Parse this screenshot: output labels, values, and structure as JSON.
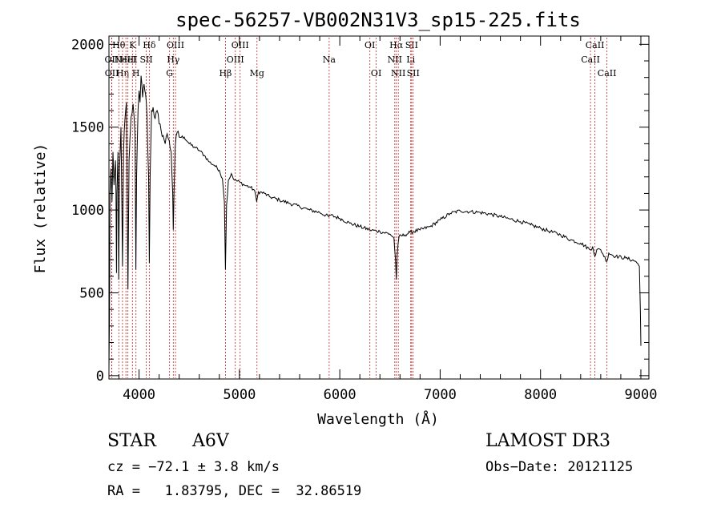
{
  "chart_data": {
    "type": "line",
    "title": "spec-56257-VB002N31V3_sp15-225.fits",
    "xlabel": "Wavelength (Å)",
    "ylabel": "Flux (relative)",
    "xlim": [
      3700,
      9080
    ],
    "ylim": [
      -20,
      2050
    ],
    "xticks": [
      4000,
      5000,
      6000,
      7000,
      8000,
      9000
    ],
    "yticks": [
      0,
      500,
      1000,
      1500,
      2000
    ],
    "series": [
      {
        "name": "spectrum",
        "color": "#000000",
        "points": [
          [
            3700,
            40
          ],
          [
            3705,
            350
          ],
          [
            3710,
            1100
          ],
          [
            3720,
            1250
          ],
          [
            3730,
            1050
          ],
          [
            3740,
            1350
          ],
          [
            3750,
            1150
          ],
          [
            3765,
            1300
          ],
          [
            3770,
            1100
          ],
          [
            3775,
            620
          ],
          [
            3780,
            1100
          ],
          [
            3790,
            1350
          ],
          [
            3797,
            580
          ],
          [
            3805,
            1250
          ],
          [
            3820,
            1500
          ],
          [
            3835,
            660
          ],
          [
            3845,
            1350
          ],
          [
            3860,
            1550
          ],
          [
            3875,
            1650
          ],
          [
            3889,
            520
          ],
          [
            3900,
            1300
          ],
          [
            3920,
            1560
          ],
          [
            3940,
            1640
          ],
          [
            3960,
            1450
          ],
          [
            3968,
            640
          ],
          [
            3975,
            1200
          ],
          [
            3990,
            1600
          ],
          [
            4000,
            1720
          ],
          [
            4010,
            1650
          ],
          [
            4020,
            1810
          ],
          [
            4035,
            1680
          ],
          [
            4050,
            1760
          ],
          [
            4065,
            1700
          ],
          [
            4080,
            1560
          ],
          [
            4095,
            1200
          ],
          [
            4102,
            680
          ],
          [
            4110,
            1200
          ],
          [
            4125,
            1600
          ],
          [
            4140,
            1620
          ],
          [
            4160,
            1550
          ],
          [
            4180,
            1600
          ],
          [
            4200,
            1520
          ],
          [
            4220,
            1480
          ],
          [
            4240,
            1450
          ],
          [
            4260,
            1400
          ],
          [
            4280,
            1460
          ],
          [
            4300,
            1420
          ],
          [
            4320,
            1350
          ],
          [
            4335,
            1100
          ],
          [
            4341,
            880
          ],
          [
            4348,
            1100
          ],
          [
            4360,
            1380
          ],
          [
            4380,
            1470
          ],
          [
            4400,
            1440
          ],
          [
            4450,
            1440
          ],
          [
            4500,
            1400
          ],
          [
            4550,
            1380
          ],
          [
            4600,
            1360
          ],
          [
            4650,
            1330
          ],
          [
            4700,
            1290
          ],
          [
            4750,
            1270
          ],
          [
            4800,
            1240
          ],
          [
            4830,
            1190
          ],
          [
            4850,
            1050
          ],
          [
            4861,
            640
          ],
          [
            4872,
            1030
          ],
          [
            4890,
            1180
          ],
          [
            4920,
            1220
          ],
          [
            4950,
            1180
          ],
          [
            5000,
            1170
          ],
          [
            5050,
            1150
          ],
          [
            5100,
            1140
          ],
          [
            5150,
            1120
          ],
          [
            5172,
            1050
          ],
          [
            5190,
            1110
          ],
          [
            5250,
            1100
          ],
          [
            5300,
            1080
          ],
          [
            5400,
            1060
          ],
          [
            5500,
            1040
          ],
          [
            5600,
            1020
          ],
          [
            5700,
            1000
          ],
          [
            5800,
            985
          ],
          [
            5890,
            960
          ],
          [
            5900,
            970
          ],
          [
            6000,
            950
          ],
          [
            6100,
            920
          ],
          [
            6200,
            900
          ],
          [
            6300,
            880
          ],
          [
            6400,
            870
          ],
          [
            6500,
            855
          ],
          [
            6540,
            830
          ],
          [
            6555,
            700
          ],
          [
            6563,
            580
          ],
          [
            6572,
            730
          ],
          [
            6590,
            840
          ],
          [
            6650,
            850
          ],
          [
            6700,
            865
          ],
          [
            6800,
            880
          ],
          [
            6900,
            900
          ],
          [
            7000,
            940
          ],
          [
            7100,
            980
          ],
          [
            7200,
            995
          ],
          [
            7300,
            990
          ],
          [
            7400,
            985
          ],
          [
            7500,
            975
          ],
          [
            7600,
            960
          ],
          [
            7700,
            945
          ],
          [
            7800,
            930
          ],
          [
            7900,
            910
          ],
          [
            8000,
            890
          ],
          [
            8100,
            870
          ],
          [
            8200,
            850
          ],
          [
            8300,
            820
          ],
          [
            8400,
            800
          ],
          [
            8498,
            760
          ],
          [
            8520,
            780
          ],
          [
            8542,
            720
          ],
          [
            8560,
            760
          ],
          [
            8600,
            760
          ],
          [
            8662,
            690
          ],
          [
            8680,
            740
          ],
          [
            8750,
            720
          ],
          [
            8850,
            710
          ],
          [
            8950,
            690
          ],
          [
            8985,
            660
          ],
          [
            8995,
            380
          ],
          [
            9000,
            180
          ]
        ]
      }
    ],
    "line_markers": [
      {
        "wl": 3727,
        "label": "OII",
        "row": 1,
        "color": "#cc2222"
      },
      {
        "wl": 3729,
        "label": "OII",
        "row": 2,
        "color": "#cc2222"
      },
      {
        "wl": 3798,
        "label": "Hθ",
        "row": 0,
        "color": "#cc2222"
      },
      {
        "wl": 3835,
        "label": "Hη",
        "row": 2,
        "color": "#cc2222"
      },
      {
        "wl": 3869,
        "label": "NeIII",
        "row": 1,
        "color": "#cc2222"
      },
      {
        "wl": 3889,
        "label": "HeI",
        "row": 1,
        "color": "#cc2222"
      },
      {
        "wl": 3934,
        "label": "K",
        "row": 0,
        "color": "#cc2222"
      },
      {
        "wl": 3969,
        "label": "H",
        "row": 2,
        "color": "#cc2222"
      },
      {
        "wl": 4072,
        "label": "SII",
        "row": 1,
        "color": "#cc2222"
      },
      {
        "wl": 4102,
        "label": "Hδ",
        "row": 0,
        "color": "#cc2222"
      },
      {
        "wl": 4304,
        "label": "G",
        "row": 2,
        "color": "#cc2222"
      },
      {
        "wl": 4341,
        "label": "Hγ",
        "row": 1,
        "color": "#cc2222"
      },
      {
        "wl": 4363,
        "label": "OIII",
        "row": 0,
        "color": "#cc2222"
      },
      {
        "wl": 4861,
        "label": "Hβ",
        "row": 2,
        "color": "#cc2222"
      },
      {
        "wl": 4959,
        "label": "OIII",
        "row": 1,
        "color": "#cc2222"
      },
      {
        "wl": 5007,
        "label": "OIII",
        "row": 0,
        "color": "#cc2222"
      },
      {
        "wl": 5175,
        "label": "Mg",
        "row": 2,
        "color": "#cc2222"
      },
      {
        "wl": 5894,
        "label": "Na",
        "row": 1,
        "color": "#cc2222"
      },
      {
        "wl": 6300,
        "label": "OI",
        "row": 0,
        "color": "#cc2222"
      },
      {
        "wl": 6363,
        "label": "OI",
        "row": 2,
        "color": "#cc2222"
      },
      {
        "wl": 6548,
        "label": "NII",
        "row": 1,
        "color": "#cc2222"
      },
      {
        "wl": 6563,
        "label": "Hα",
        "row": 0,
        "color": "#cc2222"
      },
      {
        "wl": 6583,
        "label": "NII",
        "row": 2,
        "color": "#cc2222"
      },
      {
        "wl": 6707,
        "label": "Li",
        "row": 1,
        "color": "#cc2222"
      },
      {
        "wl": 6716,
        "label": "SII",
        "row": 0,
        "color": "#cc2222"
      },
      {
        "wl": 6731,
        "label": "SII",
        "row": 2,
        "color": "#cc2222"
      },
      {
        "wl": 8498,
        "label": "CaII",
        "row": 1,
        "color": "#cc2222"
      },
      {
        "wl": 8542,
        "label": "CaII",
        "row": 0,
        "color": "#cc2222"
      },
      {
        "wl": 8662,
        "label": "CaII",
        "row": 2,
        "color": "#cc2222"
      }
    ]
  },
  "info": {
    "class_label": "STAR",
    "subclass": "A6V",
    "survey": "LAMOST DR3",
    "cz_line": "cz = −72.1 ± 3.8 km/s",
    "obs_date": "Obs−Date: 20121125",
    "coords": "RA =   1.83795, DEC =  32.86519"
  }
}
